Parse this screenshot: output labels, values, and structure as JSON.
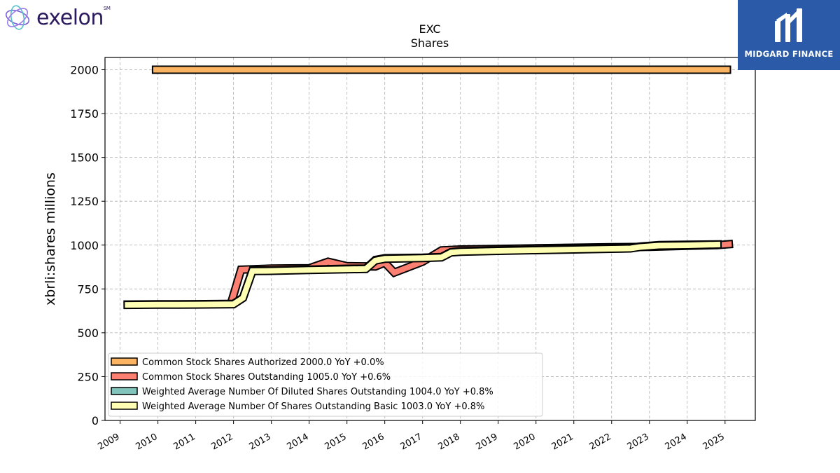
{
  "logos": {
    "left": {
      "wordmark": "exelon",
      "mark": "SM"
    },
    "right": {
      "brand": "MIDGARD FINANCE"
    }
  },
  "colors": {
    "authorized": "#fdb462",
    "outstanding": "#fb8072",
    "diluted": "#80c4bc",
    "basic": "#ffffb3",
    "outline": "#000000",
    "grid": "#b0b0b0",
    "logo_bg": "#2a5aa8"
  },
  "chart_data": {
    "type": "line",
    "title": "EXC",
    "subtitle": "Shares",
    "xlabel": "",
    "ylabel": "xbrli:shares millions",
    "xlim": [
      2008.6,
      2025.8
    ],
    "ylim": [
      0,
      2070
    ],
    "x_ticks": [
      "2009",
      "2010",
      "2011",
      "2012",
      "2013",
      "2014",
      "2015",
      "2016",
      "2017",
      "2018",
      "2019",
      "2020",
      "2021",
      "2022",
      "2023",
      "2024",
      "2025"
    ],
    "y_ticks": [
      0,
      250,
      500,
      750,
      1000,
      1250,
      1500,
      1750,
      2000
    ],
    "grid": true,
    "legend_position": "lower-left",
    "series": [
      {
        "name": "Common Stock Shares Authorized",
        "legend_label": "Common Stock Shares Authorized  2000.0 YoY +0.0%",
        "color_key": "authorized",
        "x": [
          2009.95,
          2025.05
        ],
        "y": [
          2000,
          2000
        ]
      },
      {
        "name": "Common Stock Shares Outstanding",
        "legend_label": "Common Stock Shares Outstanding  1005.0 YoY +0.6%",
        "color_key": "outstanding",
        "x": [
          2011.95,
          2012.2,
          2013.0,
          2014.0,
          2014.5,
          2015.0,
          2015.75,
          2016.0,
          2016.25,
          2017.0,
          2017.5,
          2018.0,
          2019.0,
          2020.0,
          2021.0,
          2022.0,
          2023.0,
          2024.0,
          2024.8,
          2025.1
        ],
        "y": [
          680,
          860,
          866,
          868,
          905,
          880,
          878,
          900,
          843,
          905,
          970,
          975,
          978,
          982,
          985,
          988,
          990,
          996,
          1000,
          1005
        ]
      },
      {
        "name": "Weighted Average Number Of Diluted Shares Outstanding",
        "legend_label": "Weighted Average Number Of Diluted Shares Outstanding  1004.0 YoY +0.8%",
        "color_key": "diluted",
        "x": [
          2009.2,
          2010.0,
          2011.0,
          2012.0,
          2012.25,
          2012.5,
          2013.0,
          2014.0,
          2015.0,
          2015.5,
          2015.75,
          2016.0,
          2017.0,
          2017.5,
          2017.75,
          2018.0,
          2019.0,
          2020.0,
          2021.0,
          2022.0,
          2022.5,
          2022.75,
          2023.0,
          2023.25,
          2024.0,
          2024.8
        ],
        "y": [
          661,
          662,
          663,
          665,
          700,
          855,
          855,
          860,
          865,
          866,
          915,
          925,
          928,
          932,
          960,
          965,
          970,
          974,
          978,
          982,
          984,
          992,
          996,
          1000,
          1002,
          1004
        ]
      },
      {
        "name": "Weighted Average Number Of Shares Outstanding Basic",
        "legend_label": "Weighted Average Number Of Shares Outstanding Basic  1003.0 YoY +0.8%",
        "color_key": "basic",
        "x": [
          2009.2,
          2010.0,
          2011.0,
          2012.0,
          2012.25,
          2012.5,
          2013.0,
          2014.0,
          2015.0,
          2015.5,
          2015.75,
          2016.0,
          2017.0,
          2017.5,
          2017.75,
          2018.0,
          2019.0,
          2020.0,
          2021.0,
          2022.0,
          2022.5,
          2022.75,
          2023.0,
          2023.25,
          2024.0,
          2024.8
        ],
        "y": [
          659,
          660,
          661,
          663,
          698,
          852,
          853,
          858,
          862,
          864,
          912,
          922,
          926,
          930,
          958,
          962,
          967,
          971,
          975,
          979,
          981,
          989,
          993,
          997,
          999,
          1003
        ]
      }
    ]
  }
}
